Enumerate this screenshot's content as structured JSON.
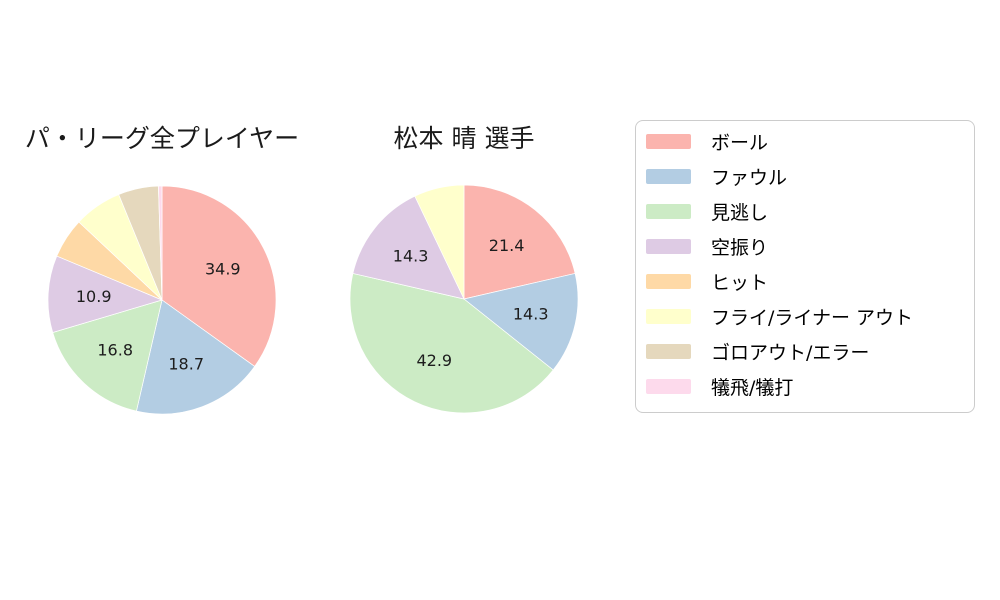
{
  "palette": [
    "#fbb4ae",
    "#b3cde3",
    "#ccebc5",
    "#decbe4",
    "#fed9a6",
    "#ffffcc",
    "#e5d8bd",
    "#fddaec"
  ],
  "legend": {
    "items": [
      {
        "key": "ball",
        "label": "ボール",
        "color": "#fbb4ae"
      },
      {
        "key": "foul",
        "label": "ファウル",
        "color": "#b3cde3"
      },
      {
        "key": "called-strike",
        "label": "見逃し",
        "color": "#ccebc5"
      },
      {
        "key": "swinging-strike",
        "label": "空振り",
        "color": "#decbe4"
      },
      {
        "key": "hit",
        "label": "ヒット",
        "color": "#fed9a6"
      },
      {
        "key": "fly-liner-out",
        "label": "フライ/ライナー アウト",
        "color": "#ffffcc"
      },
      {
        "key": "ground-out-error",
        "label": "ゴロアウト/エラー",
        "color": "#e5d8bd"
      },
      {
        "key": "sacrifice",
        "label": "犠飛/犠打",
        "color": "#fddaec"
      }
    ]
  },
  "chart_data": [
    {
      "type": "pie",
      "title": "パ・リーグ全プレイヤー",
      "categories": [
        "ボール",
        "ファウル",
        "見逃し",
        "空振り",
        "ヒット",
        "フライ/ライナー アウト",
        "ゴロアウト/エラー",
        "犠飛/犠打"
      ],
      "values": [
        34.9,
        18.7,
        16.8,
        10.9,
        5.7,
        6.8,
        5.7,
        0.5
      ],
      "visible_slice_labels": [
        "34.9",
        "18.7",
        "16.8",
        "10.9"
      ],
      "label_min_pct": 10,
      "start_angle_deg": 0,
      "direction": "clockwise",
      "label_radius_fraction": 0.6,
      "legend_position": "right"
    },
    {
      "type": "pie",
      "title": "松本 晴 選手",
      "categories": [
        "ボール",
        "ファウル",
        "見逃し",
        "空振り",
        "ヒット",
        "フライ/ライナー アウト",
        "ゴロアウト/エラー",
        "犠飛/犠打"
      ],
      "values": [
        21.4,
        14.3,
        42.9,
        14.3,
        0,
        7.1,
        0,
        0
      ],
      "visible_slice_labels": [
        "21.4",
        "14.3",
        "42.9",
        "14.3"
      ],
      "label_min_pct": 10,
      "start_angle_deg": 0,
      "direction": "clockwise",
      "label_radius_fraction": 0.6,
      "legend_position": "right"
    }
  ]
}
